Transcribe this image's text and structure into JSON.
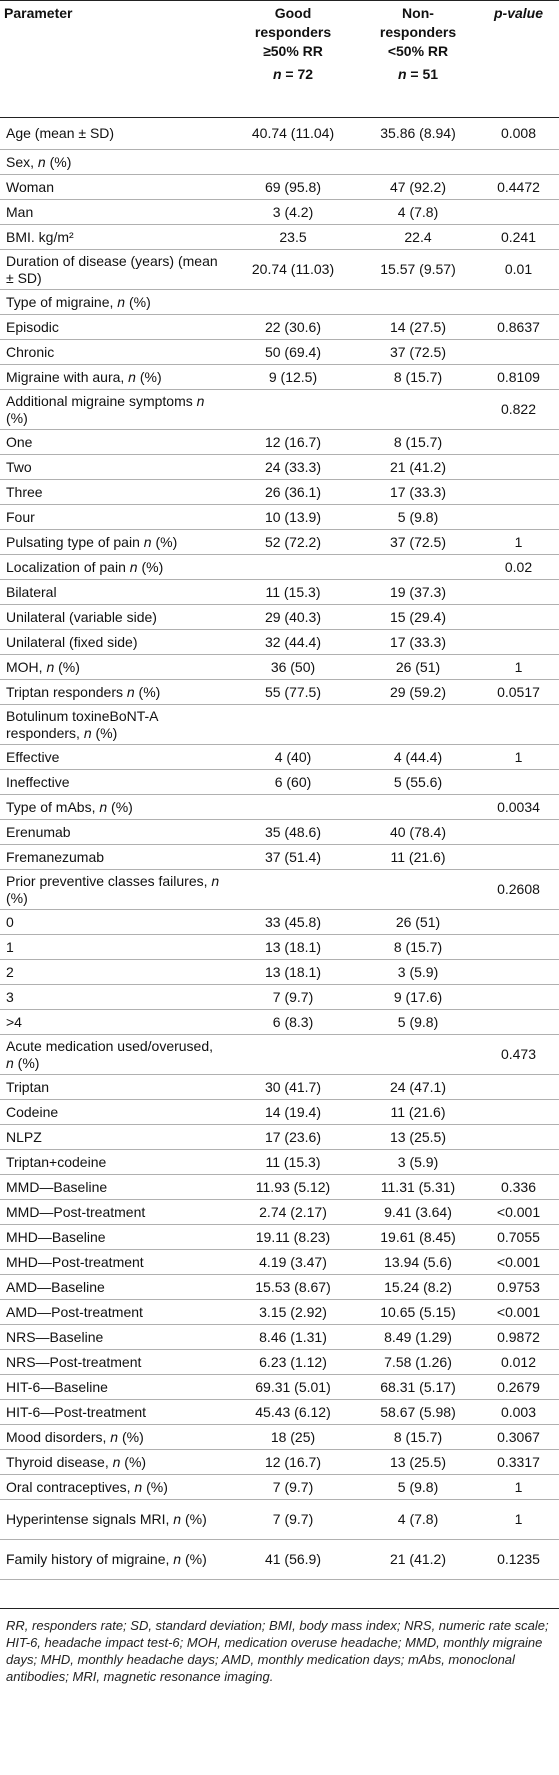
{
  "header": {
    "parameter": "Parameter",
    "good_line1": "Good",
    "good_line2": "responders",
    "good_line3": "≥50% RR",
    "good_n_label": "n",
    "good_n_value": " = 72",
    "non_line1": "Non-",
    "non_line2": "responders",
    "non_line3": "<50% RR",
    "non_n_label": "n",
    "non_n_value": " = 51",
    "pvalue_label": "p-value"
  },
  "rows": [
    {
      "param": "Age (mean ± SD)",
      "good": "40.74 (11.04)",
      "non": "35.86 (8.94)",
      "p": "0.008"
    },
    {
      "param": "Sex, n (%)",
      "good": "",
      "non": "",
      "p": ""
    },
    {
      "param": "Woman",
      "good": "69 (95.8)",
      "non": "47 (92.2)",
      "p": "0.4472"
    },
    {
      "param": "Man",
      "good": "3 (4.2)",
      "non": "4 (7.8)",
      "p": ""
    },
    {
      "param": "BMI. kg/m²",
      "good": "23.5",
      "non": "22.4",
      "p": "0.241"
    },
    {
      "param": "Duration of disease (years) (mean ± SD)",
      "good": "20.74 (11.03)",
      "non": "15.57 (9.57)",
      "p": "0.01"
    },
    {
      "param": "Type of migraine, n (%)",
      "good": "",
      "non": "",
      "p": ""
    },
    {
      "param": "Episodic",
      "good": "22 (30.6)",
      "non": "14 (27.5)",
      "p": "0.8637"
    },
    {
      "param": "Chronic",
      "good": "50 (69.4)",
      "non": "37 (72.5)",
      "p": ""
    },
    {
      "param": "Migraine with aura, n (%)",
      "good": "9 (12.5)",
      "non": "8 (15.7)",
      "p": "0.8109"
    },
    {
      "param": "Additional migraine symptoms n (%)",
      "good": "",
      "non": "",
      "p": "0.822"
    },
    {
      "param": "One",
      "good": "12 (16.7)",
      "non": "8 (15.7)",
      "p": ""
    },
    {
      "param": "Two",
      "good": "24 (33.3)",
      "non": "21 (41.2)",
      "p": ""
    },
    {
      "param": "Three",
      "good": "26 (36.1)",
      "non": "17 (33.3)",
      "p": ""
    },
    {
      "param": "Four",
      "good": "10 (13.9)",
      "non": "5 (9.8)",
      "p": ""
    },
    {
      "param": "Pulsating type of pain n (%)",
      "good": "52 (72.2)",
      "non": "37 (72.5)",
      "p": "1"
    },
    {
      "param": "Localization of pain n (%)",
      "good": "",
      "non": "",
      "p": "0.02"
    },
    {
      "param": "Bilateral",
      "good": "11 (15.3)",
      "non": "19 (37.3)",
      "p": ""
    },
    {
      "param": "Unilateral (variable side)",
      "good": "29 (40.3)",
      "non": "15 (29.4)",
      "p": ""
    },
    {
      "param": "Unilateral (fixed side)",
      "good": "32 (44.4)",
      "non": "17 (33.3)",
      "p": ""
    },
    {
      "param": "MOH, n (%)",
      "good": "36 (50)",
      "non": "26 (51)",
      "p": "1"
    },
    {
      "param": "Triptan responders n (%)",
      "good": "55 (77.5)",
      "non": "29 (59.2)",
      "p": "0.0517"
    },
    {
      "param": "Botulinum toxineBoNT-A responders, n (%)",
      "good": "",
      "non": "",
      "p": ""
    },
    {
      "param": "Effective",
      "good": "4 (40)",
      "non": "4 (44.4)",
      "p": "1"
    },
    {
      "param": "Ineffective",
      "good": "6 (60)",
      "non": "5 (55.6)",
      "p": ""
    },
    {
      "param": "Type of mAbs, n (%)",
      "good": "",
      "non": "",
      "p": "0.0034"
    },
    {
      "param": "Erenumab",
      "good": "35 (48.6)",
      "non": "40 (78.4)",
      "p": ""
    },
    {
      "param": "Fremanezumab",
      "good": "37 (51.4)",
      "non": "11 (21.6)",
      "p": ""
    },
    {
      "param": "Prior preventive classes failures, n (%)",
      "good": "",
      "non": "",
      "p": "0.2608"
    },
    {
      "param": "0",
      "good": "33 (45.8)",
      "non": "26 (51)",
      "p": ""
    },
    {
      "param": "1",
      "good": "13 (18.1)",
      "non": "8 (15.7)",
      "p": ""
    },
    {
      "param": "2",
      "good": "13 (18.1)",
      "non": "3 (5.9)",
      "p": ""
    },
    {
      "param": "3",
      "good": "7 (9.7)",
      "non": "9 (17.6)",
      "p": ""
    },
    {
      "param": ">4",
      "good": "6 (8.3)",
      "non": "5 (9.8)",
      "p": ""
    },
    {
      "param": "Acute medication used/overused, n (%)",
      "good": "",
      "non": "",
      "p": "0.473"
    },
    {
      "param": "Triptan",
      "good": "30 (41.7)",
      "non": "24 (47.1)",
      "p": ""
    },
    {
      "param": "Codeine",
      "good": "14 (19.4)",
      "non": "11 (21.6)",
      "p": ""
    },
    {
      "param": "NLPZ",
      "good": "17 (23.6)",
      "non": "13 (25.5)",
      "p": ""
    },
    {
      "param": "Triptan+codeine",
      "good": "11 (15.3)",
      "non": "3 (5.9)",
      "p": ""
    },
    {
      "param": "MMD—Baseline",
      "good": "11.93 (5.12)",
      "non": "11.31 (5.31)",
      "p": "0.336"
    },
    {
      "param": "MMD—Post-treatment",
      "good": "2.74 (2.17)",
      "non": "9.41 (3.64)",
      "p": "<0.001"
    },
    {
      "param": "MHD—Baseline",
      "good": "19.11 (8.23)",
      "non": "19.61 (8.45)",
      "p": "0.7055"
    },
    {
      "param": "MHD—Post-treatment",
      "good": "4.19 (3.47)",
      "non": "13.94 (5.6)",
      "p": "<0.001"
    },
    {
      "param": "AMD—Baseline",
      "good": "15.53 (8.67)",
      "non": "15.24 (8.2)",
      "p": "0.9753"
    },
    {
      "param": "AMD—Post-treatment",
      "good": "3.15 (2.92)",
      "non": "10.65 (5.15)",
      "p": "<0.001"
    },
    {
      "param": "NRS—Baseline",
      "good": "8.46 (1.31)",
      "non": "8.49 (1.29)",
      "p": "0.9872"
    },
    {
      "param": "NRS—Post-treatment",
      "good": "6.23 (1.12)",
      "non": "7.58 (1.26)",
      "p": "0.012"
    },
    {
      "param": "HIT-6—Baseline",
      "good": "69.31 (5.01)",
      "non": "68.31 (5.17)",
      "p": "0.2679"
    },
    {
      "param": "HIT-6—Post-treatment",
      "good": "45.43 (6.12)",
      "non": "58.67 (5.98)",
      "p": "0.003"
    },
    {
      "param": "Mood disorders, n (%)",
      "good": "18 (25)",
      "non": "8 (15.7)",
      "p": "0.3067"
    },
    {
      "param": "Thyroid disease, n (%)",
      "good": "12 (16.7)",
      "non": "13 (25.5)",
      "p": "0.3317"
    },
    {
      "param": "Oral contraceptives, n (%)",
      "good": "7 (9.7)",
      "non": "5 (9.8)",
      "p": "1"
    },
    {
      "param": "Hyperintense signals MRI, n (%)",
      "good": "7 (9.7)",
      "non": "4 (7.8)",
      "p": "1"
    },
    {
      "param": "Family history of migraine, n (%)",
      "good": "41 (56.9)",
      "non": "21 (41.2)",
      "p": "0.1235"
    }
  ],
  "footnote": "RR, responders rate; SD, standard deviation; BMI, body mass index; NRS, numeric rate scale; HIT-6, headache impact test-6; MOH, medication overuse headache; MMD, monthly migraine days; MHD, monthly headache days; AMD, monthly medication days; mAbs, monoclonal antibodies; MRI, magnetic resonance imaging."
}
